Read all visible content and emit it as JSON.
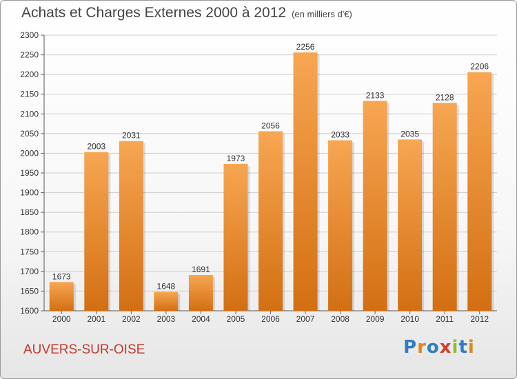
{
  "header": {
    "title": "Achats et Charges Externes 2000 à 2012",
    "unit_note": "(en milliers d'€)"
  },
  "footer": {
    "town": "AUVERS-SUR-OISE",
    "brand": "Proxiti"
  },
  "colors": {
    "bar_top": "#f7a652",
    "bar_bottom": "#d36f12",
    "town": "#c0392b",
    "grid": "#cccccc"
  },
  "chart_data": {
    "type": "bar",
    "title": "Achats et Charges Externes 2000 à 2012",
    "subtitle": "(en milliers d'€)",
    "categories": [
      "2000",
      "2001",
      "2002",
      "2003",
      "2004",
      "2005",
      "2006",
      "2007",
      "2008",
      "2009",
      "2010",
      "2011",
      "2012"
    ],
    "values": [
      1673,
      2003,
      2031,
      1648,
      1691,
      1973,
      2056,
      2256,
      2033,
      2133,
      2035,
      2128,
      2206
    ],
    "ylim": [
      1600,
      2300
    ],
    "yticks": [
      1600,
      1650,
      1700,
      1750,
      1800,
      1850,
      1900,
      1950,
      2000,
      2050,
      2100,
      2150,
      2200,
      2250,
      2300
    ],
    "grid": true,
    "legend": "none"
  }
}
